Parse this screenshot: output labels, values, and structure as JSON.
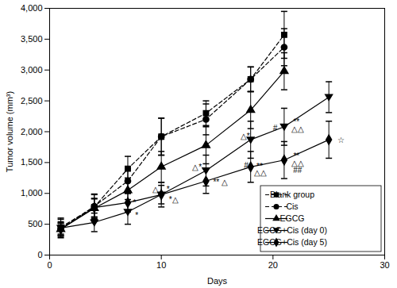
{
  "chart_data": {
    "type": "line",
    "x_label": "Days",
    "y_label": "Tumor volume (mm³)",
    "xlim": [
      0,
      30
    ],
    "xticks": [
      0,
      10,
      20,
      30
    ],
    "ylim": [
      0,
      4000
    ],
    "yticks": [
      0,
      500,
      {
        "value": 1000,
        "label": "1,000"
      },
      {
        "value": 1500,
        "label": "1,500"
      },
      {
        "value": 2000,
        "label": "2,000"
      },
      {
        "value": 2500,
        "label": "2,500"
      },
      {
        "value": 3000,
        "label": "3,000"
      },
      {
        "value": 3500,
        "label": "3,500"
      },
      {
        "value": 4000,
        "label": "4,000"
      }
    ],
    "legend": "bottom-right",
    "series": [
      {
        "name": "Blank group",
        "color": "#000000",
        "marker": "square",
        "line_style": "dashed",
        "x": [
          1,
          4,
          7,
          10,
          14,
          18,
          21
        ],
        "values": [
          450,
          780,
          1400,
          1920,
          2300,
          2850,
          3570
        ],
        "errors": [
          150,
          200,
          200,
          300,
          200,
          200,
          380
        ]
      },
      {
        "name": "Cis",
        "color": "#000000",
        "marker": "circle",
        "line_style": "dashed",
        "x": [
          1,
          4,
          7,
          10,
          14,
          18,
          21
        ],
        "values": [
          430,
          790,
          1200,
          1920,
          2200,
          2850,
          3370
        ],
        "errors": [
          150,
          200,
          200,
          300,
          250,
          200,
          300
        ]
      },
      {
        "name": "EGCG",
        "color": "#000000",
        "marker": "triangle-up",
        "line_style": "solid",
        "x": [
          1,
          4,
          7,
          10,
          14,
          18,
          21
        ],
        "values": [
          420,
          760,
          1050,
          1430,
          1780,
          2350,
          2980
        ],
        "errors": [
          100,
          150,
          200,
          250,
          300,
          300,
          300
        ]
      },
      {
        "name": "EGCG+Cis (day 0)",
        "color": "#000000",
        "marker": "triangle-down",
        "line_style": "solid",
        "x": [
          1,
          4,
          7,
          10,
          14,
          18,
          21,
          25
        ],
        "values": [
          440,
          530,
          700,
          980,
          1370,
          1870,
          2080,
          2560
        ],
        "errors": [
          100,
          150,
          200,
          200,
          250,
          300,
          300,
          250
        ]
      },
      {
        "name": "EGCG+Cis (day 5)",
        "color": "#000000",
        "marker": "diamond",
        "line_style": "solid",
        "x": [
          1,
          4,
          7,
          10,
          14,
          18,
          21,
          25
        ],
        "values": [
          420,
          770,
          850,
          980,
          1200,
          1430,
          1540,
          1870
        ],
        "errors": [
          100,
          150,
          150,
          150,
          200,
          250,
          300,
          300
        ]
      }
    ],
    "annotations": [
      {
        "text": "*",
        "x": 7.6,
        "y": 840
      },
      {
        "text": "*",
        "x": 7.8,
        "y": 640
      },
      {
        "text": "△",
        "x": 9.5,
        "y": 1060
      },
      {
        "text": "*",
        "x": 10.6,
        "y": 1060
      },
      {
        "text": "*△",
        "x": 11.1,
        "y": 900
      },
      {
        "text": "△*",
        "x": 13.2,
        "y": 1420
      },
      {
        "text": "** △",
        "x": 15.3,
        "y": 1180
      },
      {
        "text": "△*",
        "x": 17.5,
        "y": 1920
      },
      {
        "text": "#",
        "x": 17.6,
        "y": 1450
      },
      {
        "text": "**",
        "x": 18.8,
        "y": 1440
      },
      {
        "text": "△△",
        "x": 18.9,
        "y": 1330
      },
      {
        "text": "#",
        "x": 20.2,
        "y": 2050
      },
      {
        "text": "**",
        "x": 22.1,
        "y": 2160
      },
      {
        "text": "△△",
        "x": 22.2,
        "y": 2040
      },
      {
        "text": "**",
        "x": 22.1,
        "y": 1600
      },
      {
        "text": "△△",
        "x": 22.2,
        "y": 1490
      },
      {
        "text": "##",
        "x": 22.2,
        "y": 1370
      },
      {
        "text": "☆",
        "x": 26.1,
        "y": 1860
      }
    ]
  }
}
